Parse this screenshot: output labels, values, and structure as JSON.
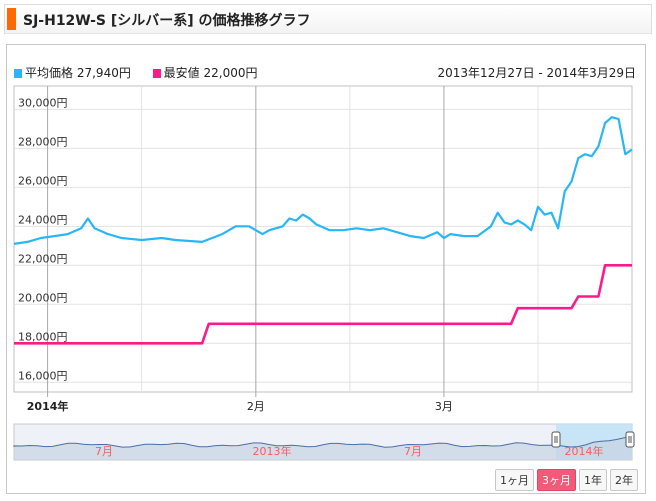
{
  "header": {
    "title": "SJ-H12W-S [シルバー系] の価格推移グラフ"
  },
  "legend": [
    {
      "label": "平均価格",
      "value": "27,940円",
      "color": "#29b6f6"
    },
    {
      "label": "最安値",
      "value": "22,000円",
      "color": "#ff1a8c"
    }
  ],
  "date_range": "2013年12月27日 - 2014年3月29日",
  "range_buttons": [
    "1ヶ月",
    "3ヶ月",
    "1年",
    "2年"
  ],
  "active_range": "3ヶ月",
  "navigator_labels": [
    "7月",
    "2013年",
    "7月",
    "2014年"
  ],
  "chart_data": {
    "type": "line",
    "xlabel": "",
    "ylabel": "",
    "ylim": [
      15500,
      31200
    ],
    "yticks": [
      16000,
      18000,
      20000,
      22000,
      24000,
      26000,
      28000,
      30000
    ],
    "ytick_labels": [
      "16,000円",
      "18,000円",
      "20,000円",
      "22,000円",
      "24,000円",
      "26,000円",
      "28,000円",
      "30,000円"
    ],
    "xlim": [
      "2013-12-27",
      "2014-03-29"
    ],
    "xticks": [
      {
        "date": "2014-01-01",
        "label": "2014年",
        "bold": true
      },
      {
        "date": "2014-02-01",
        "label": "2月",
        "bold": false
      },
      {
        "date": "2014-03-01",
        "label": "3月",
        "bold": false
      }
    ],
    "grid_dates": [
      "2014-01-01",
      "2014-01-15",
      "2014-02-01",
      "2014-02-15",
      "2014-03-01",
      "2014-03-15"
    ],
    "series": [
      {
        "name": "平均価格",
        "color": "#29b6f6",
        "points": [
          [
            "2013-12-27",
            23100
          ],
          [
            "2013-12-29",
            23200
          ],
          [
            "2013-12-31",
            23400
          ],
          [
            "2014-01-02",
            23500
          ],
          [
            "2014-01-04",
            23600
          ],
          [
            "2014-01-06",
            23900
          ],
          [
            "2014-01-07",
            24400
          ],
          [
            "2014-01-08",
            23900
          ],
          [
            "2014-01-10",
            23600
          ],
          [
            "2014-01-12",
            23400
          ],
          [
            "2014-01-15",
            23300
          ],
          [
            "2014-01-18",
            23400
          ],
          [
            "2014-01-20",
            23300
          ],
          [
            "2014-01-24",
            23200
          ],
          [
            "2014-01-27",
            23600
          ],
          [
            "2014-01-29",
            24000
          ],
          [
            "2014-01-31",
            24000
          ],
          [
            "2014-02-01",
            23800
          ],
          [
            "2014-02-02",
            23600
          ],
          [
            "2014-02-03",
            23800
          ],
          [
            "2014-02-05",
            24000
          ],
          [
            "2014-02-06",
            24400
          ],
          [
            "2014-02-07",
            24300
          ],
          [
            "2014-02-08",
            24600
          ],
          [
            "2014-02-09",
            24400
          ],
          [
            "2014-02-10",
            24100
          ],
          [
            "2014-02-12",
            23800
          ],
          [
            "2014-02-14",
            23800
          ],
          [
            "2014-02-16",
            23900
          ],
          [
            "2014-02-18",
            23800
          ],
          [
            "2014-02-20",
            23900
          ],
          [
            "2014-02-22",
            23700
          ],
          [
            "2014-02-24",
            23500
          ],
          [
            "2014-02-26",
            23400
          ],
          [
            "2014-02-28",
            23700
          ],
          [
            "2014-03-01",
            23400
          ],
          [
            "2014-03-02",
            23600
          ],
          [
            "2014-03-04",
            23500
          ],
          [
            "2014-03-06",
            23500
          ],
          [
            "2014-03-08",
            24000
          ],
          [
            "2014-03-09",
            24700
          ],
          [
            "2014-03-10",
            24200
          ],
          [
            "2014-03-11",
            24100
          ],
          [
            "2014-03-12",
            24300
          ],
          [
            "2014-03-13",
            24100
          ],
          [
            "2014-03-14",
            23800
          ],
          [
            "2014-03-15",
            25000
          ],
          [
            "2014-03-16",
            24600
          ],
          [
            "2014-03-17",
            24700
          ],
          [
            "2014-03-18",
            23900
          ],
          [
            "2014-03-19",
            25800
          ],
          [
            "2014-03-20",
            26300
          ],
          [
            "2014-03-21",
            27500
          ],
          [
            "2014-03-22",
            27700
          ],
          [
            "2014-03-23",
            27600
          ],
          [
            "2014-03-24",
            28100
          ],
          [
            "2014-03-25",
            29300
          ],
          [
            "2014-03-26",
            29600
          ],
          [
            "2014-03-27",
            29500
          ],
          [
            "2014-03-28",
            27700
          ],
          [
            "2014-03-29",
            27940
          ]
        ]
      },
      {
        "name": "最安値",
        "color": "#ff1a8c",
        "points": [
          [
            "2013-12-27",
            18000
          ],
          [
            "2014-01-24",
            18000
          ],
          [
            "2014-01-25",
            19000
          ],
          [
            "2014-03-11",
            19000
          ],
          [
            "2014-03-12",
            19800
          ],
          [
            "2014-03-20",
            19800
          ],
          [
            "2014-03-21",
            20400
          ],
          [
            "2014-03-24",
            20400
          ],
          [
            "2014-03-25",
            22000
          ],
          [
            "2014-03-29",
            22000
          ]
        ]
      }
    ]
  }
}
